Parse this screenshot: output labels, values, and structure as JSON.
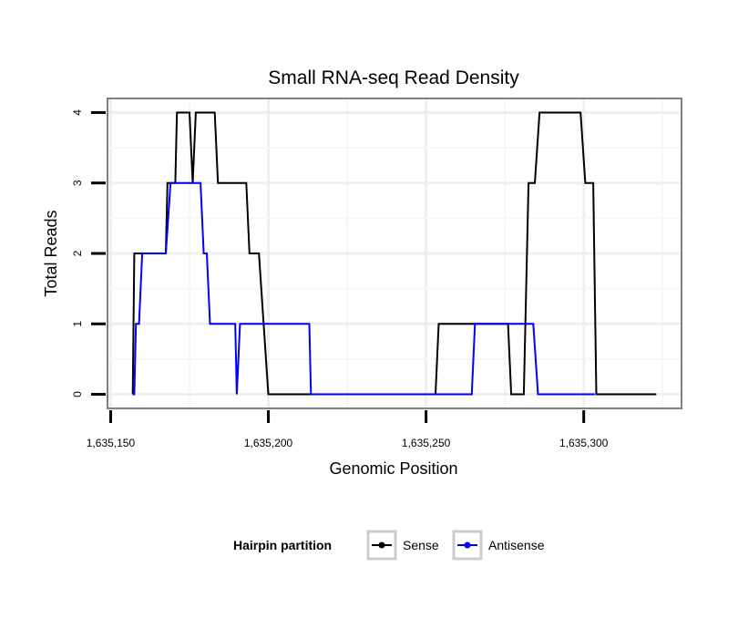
{
  "chart_data": {
    "type": "line",
    "title": "Small RNA-seq Read Density",
    "xlabel": "Genomic Position",
    "ylabel": "Total Reads",
    "xlim": [
      1635149,
      1635331
    ],
    "ylim": [
      -0.2,
      4.2
    ],
    "x_ticks": [
      1635150,
      1635200,
      1635250,
      1635300
    ],
    "x_tick_labels": [
      "1,635,150",
      "1,635,200",
      "1,635,250",
      "1,635,300"
    ],
    "y_ticks": [
      0,
      1,
      2,
      3,
      4
    ],
    "y_tick_labels": [
      "0",
      "1",
      "2",
      "3",
      "4"
    ],
    "grid": true,
    "legend_title": "Hairpin partition",
    "legend_position": "bottom",
    "series": [
      {
        "name": "Sense",
        "color": "#000000",
        "points": [
          [
            1635157,
            0
          ],
          [
            1635157.5,
            2
          ],
          [
            1635167.5,
            2
          ],
          [
            1635168,
            3
          ],
          [
            1635170.5,
            3
          ],
          [
            1635171,
            4
          ],
          [
            1635175,
            4
          ],
          [
            1635176,
            3
          ],
          [
            1635177,
            4
          ],
          [
            1635183,
            4
          ],
          [
            1635184,
            3
          ],
          [
            1635193,
            3
          ],
          [
            1635194,
            2
          ],
          [
            1635197,
            2
          ],
          [
            1635200,
            0
          ],
          [
            1635253,
            0
          ],
          [
            1635254,
            1
          ],
          [
            1635276,
            1
          ],
          [
            1635277,
            0
          ],
          [
            1635281,
            0
          ],
          [
            1635282.5,
            3
          ],
          [
            1635284.5,
            3
          ],
          [
            1635286,
            4
          ],
          [
            1635299,
            4
          ],
          [
            1635300.5,
            3
          ],
          [
            1635303,
            3
          ],
          [
            1635304,
            0
          ],
          [
            1635323,
            0
          ]
        ]
      },
      {
        "name": "Antisense",
        "color": "#0000ff",
        "points": [
          [
            1635157,
            0
          ],
          [
            1635157.5,
            0
          ],
          [
            1635158,
            1
          ],
          [
            1635159,
            1
          ],
          [
            1635160,
            2
          ],
          [
            1635167.5,
            2
          ],
          [
            1635169,
            3
          ],
          [
            1635178.5,
            3
          ],
          [
            1635179.5,
            2
          ],
          [
            1635180.5,
            2
          ],
          [
            1635181.5,
            1
          ],
          [
            1635189.5,
            1
          ],
          [
            1635190,
            0
          ],
          [
            1635191,
            1
          ],
          [
            1635213,
            1
          ],
          [
            1635213.5,
            0
          ],
          [
            1635264.5,
            0
          ],
          [
            1635265.5,
            1
          ],
          [
            1635284,
            1
          ],
          [
            1635285.5,
            0
          ],
          [
            1635303.5,
            0
          ]
        ]
      }
    ]
  }
}
